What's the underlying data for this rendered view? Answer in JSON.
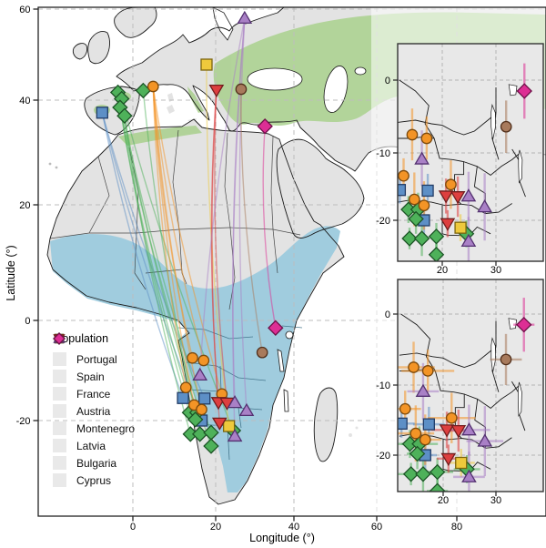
{
  "figure": {
    "xlabel": "Longitude (°)",
    "ylabel": "Latitude (°)"
  },
  "legend": {
    "title": "Population"
  },
  "chart_data": {
    "type": "scatter",
    "subtype": "geographic-migration-map",
    "main": {
      "xlabel": "Longitude (°)",
      "ylabel": "Latitude (°)",
      "x_ticks": [
        0,
        20,
        40,
        60,
        80
      ],
      "y_ticks": [
        60,
        40,
        20,
        0,
        -20
      ],
      "xlim": [
        -23,
        102
      ],
      "ylim": [
        -38,
        60
      ],
      "grid": true,
      "breeding_range_color": "#a5cf87",
      "wintering_range_color": "#9ccadd"
    },
    "insets": [
      {
        "position": "top-right",
        "x_ticks": [
          20,
          30
        ],
        "y_ticks": [
          0,
          -10,
          -20
        ],
        "error_bars": "latitude"
      },
      {
        "position": "bottom-right",
        "x_ticks": [
          20,
          30
        ],
        "y_ticks": [
          0,
          -10,
          -20
        ],
        "error_bars": "latitude+longitude"
      }
    ],
    "point_format": "wintering: [lon, lat, err_lon, err_lat]; breeding: [lon, lat]",
    "populations": [
      {
        "name": "Portugal",
        "shape": "square",
        "color": "#5d8fc6",
        "edge": "#223c66",
        "breeding": [
          [
            -7.4,
            37.6
          ]
        ],
        "wintering": [
          [
            12.1,
            -15.5,
            2.5,
            2.0
          ],
          [
            17.3,
            -15.6,
            3.0,
            2.5
          ],
          [
            16.6,
            -20.0,
            2.2,
            3.0
          ]
        ]
      },
      {
        "name": "Spain",
        "shape": "diamond",
        "color": "#4eb15a",
        "edge": "#1c5426",
        "breeding": [
          [
            -3.6,
            41.7
          ],
          [
            -2.7,
            40.3
          ],
          [
            -3.1,
            38.6
          ],
          [
            -2.0,
            37.0
          ],
          [
            2.5,
            42.1
          ]
        ],
        "wintering": [
          [
            13.7,
            -18.4,
            2.5,
            2.0
          ],
          [
            15.5,
            -18.4,
            3.5,
            2.5
          ],
          [
            15.1,
            -19.8,
            2.0,
            2.2
          ],
          [
            13.9,
            -22.7,
            2.5,
            1.6
          ],
          [
            16.2,
            -22.7,
            2.0,
            2.6
          ],
          [
            18.9,
            -22.4,
            3.0,
            2.0
          ],
          [
            24.5,
            -22.0,
            2.5,
            2.0
          ],
          [
            18.9,
            -25.1,
            2.0,
            1.6
          ]
        ]
      },
      {
        "name": "France",
        "shape": "circle",
        "color": "#f39426",
        "edge": "#7c4a0d",
        "breeding": [
          [
            4.9,
            43.0
          ]
        ],
        "wintering": [
          [
            14.4,
            -7.5,
            4.0,
            3.6
          ],
          [
            17.1,
            -8.0,
            5.0,
            3.0
          ],
          [
            12.8,
            -13.4,
            3.0,
            2.6
          ],
          [
            21.6,
            -14.7,
            4.5,
            3.6
          ],
          [
            14.8,
            -16.9,
            3.5,
            4.0
          ],
          [
            16.6,
            -17.8,
            3.0,
            3.6
          ]
        ]
      },
      {
        "name": "Austria",
        "shape": "square",
        "color": "#eec93c",
        "edge": "#7c650e",
        "breeding": [
          [
            17.8,
            47.8
          ]
        ],
        "wintering": [
          [
            23.4,
            -21.1,
            2.6,
            2.0
          ]
        ]
      },
      {
        "name": "Montenegro",
        "shape": "triangle-down",
        "color": "#dd3f3f",
        "edge": "#701d1d",
        "breeding": [
          [
            20.2,
            42.2
          ]
        ],
        "wintering": [
          [
            20.7,
            -16.4,
            3.0,
            2.6
          ],
          [
            22.9,
            -16.5,
            2.5,
            3.0
          ],
          [
            21.0,
            -20.5,
            2.2,
            2.0
          ]
        ]
      },
      {
        "name": "Latvia",
        "shape": "triangle-up",
        "color": "#a980c6",
        "edge": "#533070",
        "breeding": [
          [
            27.4,
            58.0
          ]
        ],
        "wintering": [
          [
            16.2,
            -10.9,
            3.0,
            4.0
          ],
          [
            24.9,
            -16.4,
            4.0,
            3.6
          ],
          [
            27.9,
            -18.0,
            3.5,
            5.0
          ],
          [
            24.9,
            -23.1,
            3.0,
            3.6
          ]
        ]
      },
      {
        "name": "Bulgaria",
        "shape": "circle",
        "color": "#a87a5c",
        "edge": "#52301c",
        "breeding": [
          [
            26.5,
            42.4
          ]
        ],
        "wintering": [
          [
            31.9,
            -6.4,
            3.0,
            3.6
          ]
        ]
      },
      {
        "name": "Cyprus",
        "shape": "diamond",
        "color": "#dd2e94",
        "edge": "#6e1048",
        "breeding": [
          [
            32.6,
            35.0
          ]
        ],
        "wintering": [
          [
            35.3,
            -1.5,
            2.0,
            3.8
          ]
        ]
      }
    ]
  }
}
